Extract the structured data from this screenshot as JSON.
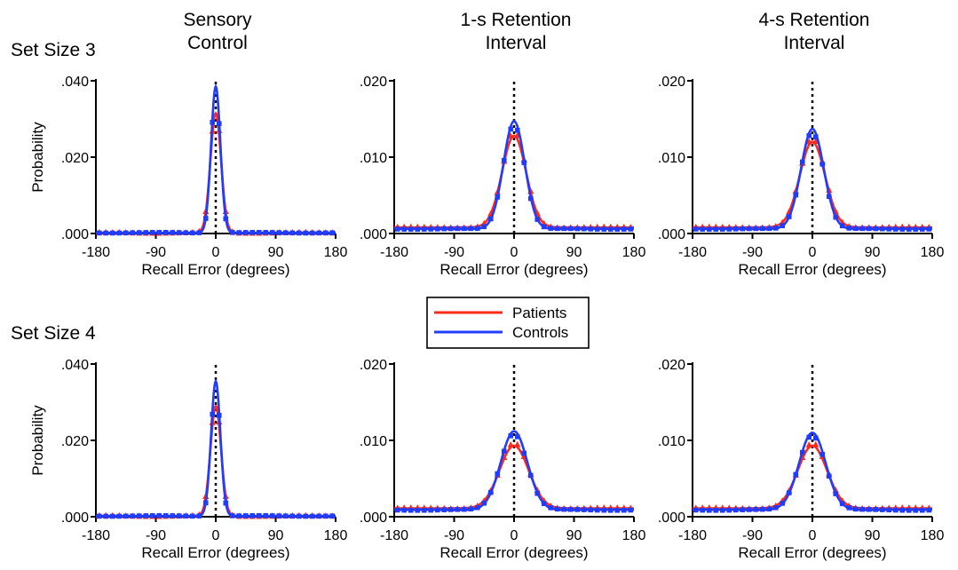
{
  "figure": {
    "column_titles": [
      [
        "Sensory",
        "Control"
      ],
      [
        "1-s Retention",
        "Interval"
      ],
      [
        "4-s Retention",
        "Interval"
      ]
    ],
    "row_labels": [
      "Set Size 3",
      "Set Size 4"
    ],
    "legend": {
      "entries": [
        {
          "label": "Patients",
          "color": "#ff2a1a"
        },
        {
          "label": "Controls",
          "color": "#1f3cff"
        }
      ]
    },
    "colors": {
      "patients": "#ff2a1a",
      "controls": "#1f3cff",
      "midline": "#000000"
    }
  },
  "chart_data": [
    {
      "type": "line",
      "panel": "Set Size 3 - Sensory Control",
      "xlabel": "Recall Error (degrees)",
      "ylabel": "Probability",
      "xlim": [
        -180,
        180
      ],
      "xticks": [
        -180,
        -90,
        0,
        90,
        180
      ],
      "ylim": [
        0,
        0.04
      ],
      "yticks": [
        0,
        0.02,
        0.04
      ],
      "ytick_labels": [
        ".000",
        ".020",
        ".040"
      ],
      "series": [
        {
          "name": "Patients",
          "color": "#ff2a1a",
          "marker": "triangle",
          "baseline": 0.0002,
          "peak": 0.0315,
          "width": 8
        },
        {
          "name": "Controls",
          "color": "#1f3cff",
          "marker": "square",
          "baseline": 0.0002,
          "peak": 0.0385,
          "width": 7
        }
      ]
    },
    {
      "type": "line",
      "panel": "Set Size 3 - 1-s Retention Interval",
      "xlabel": "Recall Error (degrees)",
      "ylabel": "",
      "xlim": [
        -180,
        180
      ],
      "xticks": [
        -180,
        -90,
        0,
        90,
        180
      ],
      "ylim": [
        0,
        0.02
      ],
      "yticks": [
        0,
        0.01,
        0.02
      ],
      "ytick_labels": [
        ".000",
        ".010",
        ".020"
      ],
      "series": [
        {
          "name": "Patients",
          "color": "#ff2a1a",
          "marker": "triangle",
          "baseline": 0.0008,
          "peak": 0.0128,
          "width": 18
        },
        {
          "name": "Controls",
          "color": "#1f3cff",
          "marker": "square",
          "baseline": 0.0006,
          "peak": 0.0147,
          "width": 16
        }
      ]
    },
    {
      "type": "line",
      "panel": "Set Size 3 - 4-s Retention Interval",
      "xlabel": "Recall Error (degrees)",
      "ylabel": "",
      "xlim": [
        -180,
        180
      ],
      "xticks": [
        -180,
        -90,
        0,
        90,
        180
      ],
      "ylim": [
        0,
        0.02
      ],
      "yticks": [
        0,
        0.01,
        0.02
      ],
      "ytick_labels": [
        ".000",
        ".010",
        ".020"
      ],
      "series": [
        {
          "name": "Patients",
          "color": "#ff2a1a",
          "marker": "triangle",
          "baseline": 0.0008,
          "peak": 0.012,
          "width": 19
        },
        {
          "name": "Controls",
          "color": "#1f3cff",
          "marker": "square",
          "baseline": 0.0006,
          "peak": 0.0137,
          "width": 17
        }
      ]
    },
    {
      "type": "line",
      "panel": "Set Size 4 - Sensory Control",
      "xlabel": "Recall Error (degrees)",
      "ylabel": "Probability",
      "xlim": [
        -180,
        180
      ],
      "xticks": [
        -180,
        -90,
        0,
        90,
        180
      ],
      "ylim": [
        0,
        0.04
      ],
      "yticks": [
        0,
        0.02,
        0.04
      ],
      "ytick_labels": [
        ".000",
        ".020",
        ".040"
      ],
      "series": [
        {
          "name": "Patients",
          "color": "#ff2a1a",
          "marker": "triangle",
          "baseline": 0.0002,
          "peak": 0.029,
          "width": 8
        },
        {
          "name": "Controls",
          "color": "#1f3cff",
          "marker": "square",
          "baseline": 0.0002,
          "peak": 0.0355,
          "width": 7
        }
      ]
    },
    {
      "type": "line",
      "panel": "Set Size 4 - 1-s Retention Interval",
      "xlabel": "Recall Error (degrees)",
      "ylabel": "",
      "xlim": [
        -180,
        180
      ],
      "xticks": [
        -180,
        -90,
        0,
        90,
        180
      ],
      "ylim": [
        0,
        0.02
      ],
      "yticks": [
        0,
        0.01,
        0.02
      ],
      "ytick_labels": [
        ".000",
        ".010",
        ".020"
      ],
      "series": [
        {
          "name": "Patients",
          "color": "#ff2a1a",
          "marker": "triangle",
          "baseline": 0.0011,
          "peak": 0.0093,
          "width": 22
        },
        {
          "name": "Controls",
          "color": "#1f3cff",
          "marker": "square",
          "baseline": 0.0009,
          "peak": 0.0112,
          "width": 20
        }
      ]
    },
    {
      "type": "line",
      "panel": "Set Size 4 - 4-s Retention Interval",
      "xlabel": "Recall Error (degrees)",
      "ylabel": "",
      "xlim": [
        -180,
        180
      ],
      "xticks": [
        -180,
        -90,
        0,
        90,
        180
      ],
      "ylim": [
        0,
        0.02
      ],
      "yticks": [
        0,
        0.01,
        0.02
      ],
      "ytick_labels": [
        ".000",
        ".010",
        ".020"
      ],
      "series": [
        {
          "name": "Patients",
          "color": "#ff2a1a",
          "marker": "triangle",
          "baseline": 0.0011,
          "peak": 0.0093,
          "width": 22
        },
        {
          "name": "Controls",
          "color": "#1f3cff",
          "marker": "square",
          "baseline": 0.0009,
          "peak": 0.011,
          "width": 20
        }
      ]
    }
  ]
}
